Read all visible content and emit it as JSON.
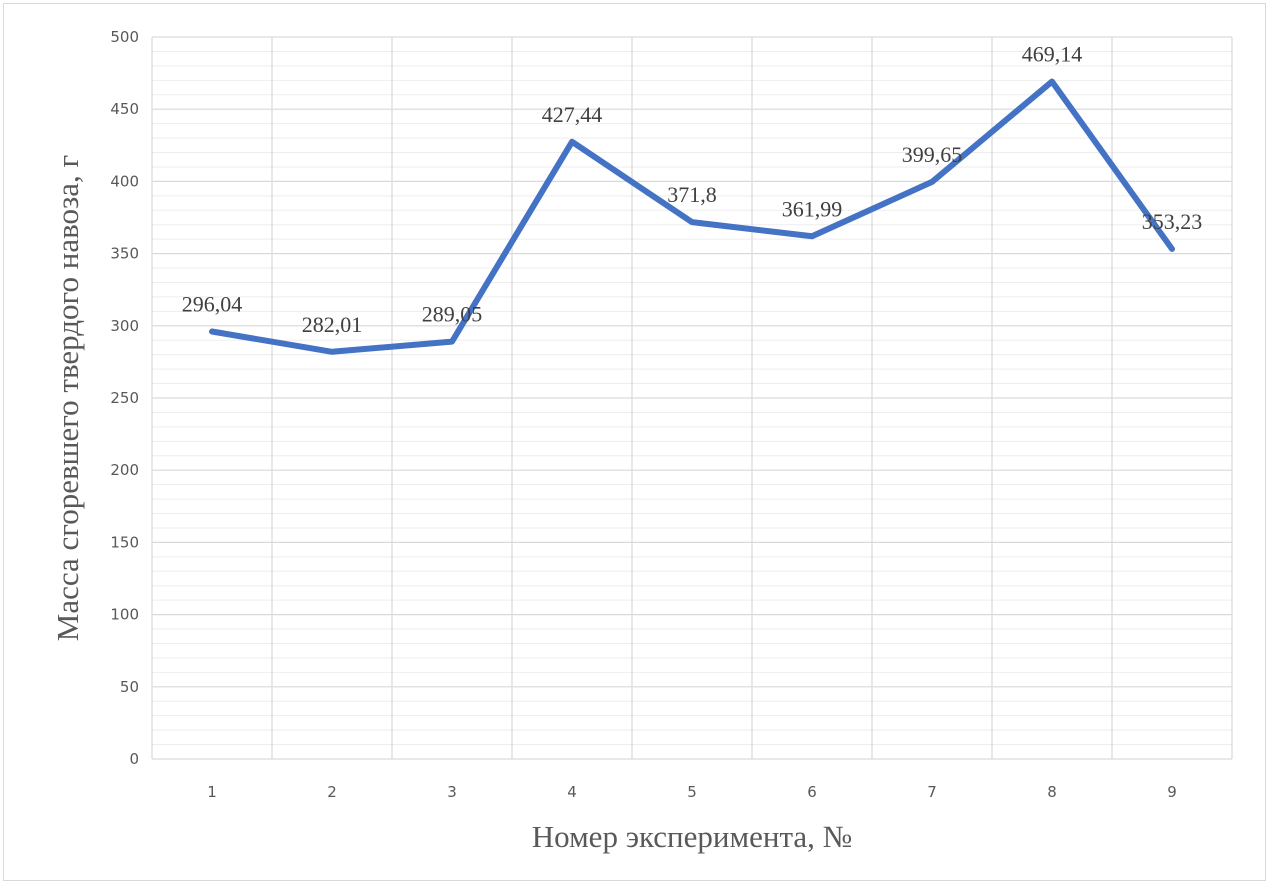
{
  "chart_data": {
    "type": "line",
    "xlabel": "Номер эксперимента, №",
    "ylabel": "Масса сгоревшего твердого навоза, г",
    "categories": [
      "1",
      "2",
      "3",
      "4",
      "5",
      "6",
      "7",
      "8",
      "9"
    ],
    "series": [
      {
        "values": [
          296.04,
          282.01,
          289.05,
          427.44,
          371.8,
          361.99,
          399.65,
          469.14,
          353.23
        ],
        "labels": [
          "296,04",
          "282,01",
          "289,05",
          "427,44",
          "371,8",
          "361,99",
          "399,65",
          "469,14",
          "353,23"
        ],
        "color": "#4472c4"
      }
    ],
    "ylim": [
      0,
      500
    ],
    "yticks": [
      "0",
      "50",
      "100",
      "150",
      "200",
      "250",
      "300",
      "350",
      "400",
      "450",
      "500"
    ],
    "grid": true,
    "legend": "none"
  }
}
